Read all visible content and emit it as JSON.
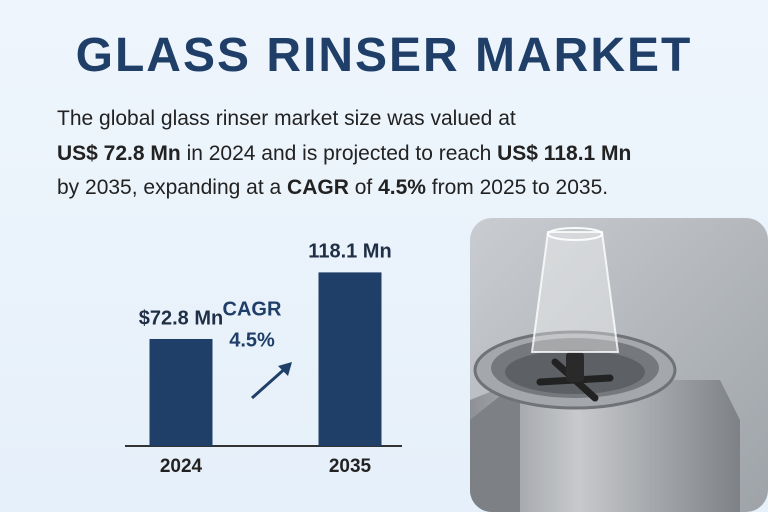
{
  "title": "GLASS RINSER MARKET",
  "description": [
    "The global glass rinser market size was valued at",
    "US$ 72.8 Mn",
    "in 2024 and is projected to reach",
    "US$ 118.1 Mn",
    "by 2035, expanding at a",
    "CAGR",
    "of",
    "4.5%",
    "from 2025 to 2035."
  ],
  "chart_data": {
    "type": "bar",
    "categories": [
      "2024",
      "2035"
    ],
    "values": [
      72.8,
      118.1
    ],
    "value_labels": [
      "$72.8 Mn",
      "118.1 Mn"
    ],
    "color": "#1f3f68",
    "annotation": [
      "CAGR",
      "4.5%"
    ]
  }
}
